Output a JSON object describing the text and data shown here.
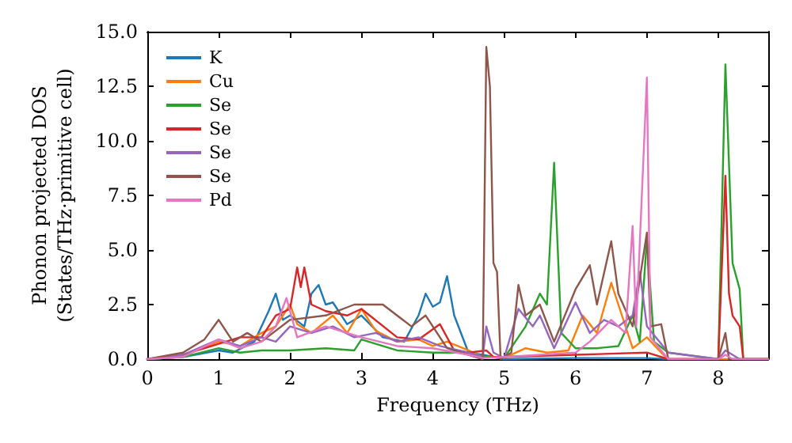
{
  "chart_data": {
    "type": "line",
    "xlabel": "Frequency (THz)",
    "ylabel": "Phonon projected DOS\n(States/THz·primitive cell)",
    "xlim": [
      0,
      8.7
    ],
    "ylim": [
      0,
      15
    ],
    "xticks": [
      0,
      1,
      2,
      3,
      4,
      5,
      6,
      7,
      8
    ],
    "yticks": [
      {
        "value": 0,
        "label": "0.0"
      },
      {
        "value": 2.5,
        "label": "2.5"
      },
      {
        "value": 5,
        "label": "5.0"
      },
      {
        "value": 7.5,
        "label": "7.5"
      },
      {
        "value": 10,
        "label": "10.0"
      },
      {
        "value": 12.5,
        "label": "12.5"
      },
      {
        "value": 15,
        "label": "15.0"
      }
    ],
    "grid": false,
    "legend": "top left",
    "marker": "none",
    "line_style": "solid",
    "series": [
      {
        "name": "K",
        "color": "#1f77b4",
        "x": [
          0,
          0.5,
          1,
          1.2,
          1.5,
          1.7,
          1.8,
          1.9,
          2.0,
          2.2,
          2.3,
          2.4,
          2.5,
          2.6,
          2.8,
          3.0,
          3.3,
          3.6,
          3.8,
          3.9,
          4.0,
          4.1,
          4.2,
          4.3,
          4.5,
          4.7,
          5.0,
          6,
          7,
          7.3
        ],
        "values": [
          0,
          0.1,
          0.4,
          0.3,
          0.8,
          2.2,
          3.0,
          1.8,
          2.0,
          1.5,
          3.0,
          3.4,
          2.5,
          2.6,
          1.6,
          2.0,
          1.0,
          0.8,
          2.0,
          3.0,
          2.4,
          2.6,
          3.8,
          2.0,
          0.3,
          0.2,
          0,
          0.05,
          0.05,
          0
        ]
      },
      {
        "name": "Cu",
        "color": "#ff7f0e",
        "x": [
          0,
          0.5,
          1,
          1.3,
          1.6,
          1.8,
          2.0,
          2.1,
          2.3,
          2.6,
          2.8,
          3.0,
          3.2,
          3.5,
          3.8,
          4.0,
          4.2,
          4.5,
          4.7,
          5.0,
          5.3,
          5.6,
          5.9,
          6.1,
          6.3,
          6.5,
          6.6,
          6.8,
          7.0,
          7.2,
          7.3,
          8,
          8.7
        ],
        "values": [
          0,
          0.2,
          0.8,
          0.6,
          1.2,
          1.5,
          2.5,
          1.6,
          1.2,
          2.0,
          1.2,
          2.3,
          1.3,
          0.8,
          0.9,
          0.6,
          0.8,
          0.4,
          0.1,
          0.05,
          0.5,
          0.3,
          0.4,
          2.0,
          1.2,
          3.5,
          2.5,
          0.5,
          1.0,
          0.3,
          0,
          0,
          0
        ]
      },
      {
        "name": "Se",
        "color": "#2ca02c",
        "x": [
          0,
          0.5,
          1,
          1.3,
          1.6,
          2.0,
          2.5,
          2.9,
          3.0,
          3.5,
          4.0,
          4.5,
          4.7,
          5.0,
          5.3,
          5.5,
          5.6,
          5.7,
          5.8,
          6.0,
          6.3,
          6.6,
          6.8,
          6.9,
          7.0,
          7.1,
          7.3,
          8.0,
          8.1,
          8.2,
          8.3,
          8.35,
          8.7
        ],
        "values": [
          0,
          0.1,
          0.5,
          0.3,
          0.4,
          0.4,
          0.5,
          0.4,
          0.9,
          0.4,
          0.3,
          0.3,
          0.1,
          0.05,
          1.5,
          3.0,
          2.5,
          9.0,
          1.2,
          0.5,
          0.5,
          0.6,
          2.0,
          0.8,
          5.5,
          0.8,
          0.3,
          0,
          13.5,
          4.4,
          3.2,
          0,
          0
        ]
      },
      {
        "name": "Se",
        "color": "#d62728",
        "x": [
          0,
          0.5,
          1,
          1.3,
          1.6,
          1.8,
          2.0,
          2.1,
          2.15,
          2.2,
          2.3,
          2.5,
          2.8,
          3.0,
          3.5,
          3.8,
          4.1,
          4.3,
          4.5,
          4.75,
          4.85,
          5.0,
          6.0,
          7.0,
          7.3,
          8.0,
          8.1,
          8.15,
          8.2,
          8.3,
          8.35,
          8.7
        ],
        "values": [
          0,
          0.2,
          0.7,
          1.0,
          1.0,
          2.0,
          2.3,
          4.2,
          3.3,
          4.2,
          2.5,
          2.2,
          2.0,
          2.3,
          1.0,
          0.9,
          1.6,
          0.4,
          0.3,
          0.4,
          0.1,
          0.1,
          0.2,
          0.3,
          0,
          0,
          8.4,
          3.0,
          2.0,
          1.5,
          0,
          0
        ]
      },
      {
        "name": "Se",
        "color": "#9467bd",
        "x": [
          0,
          0.5,
          1,
          1.3,
          1.6,
          1.8,
          2.0,
          2.3,
          2.6,
          2.9,
          3.2,
          3.5,
          3.8,
          4.1,
          4.5,
          4.7,
          4.75,
          4.85,
          5.0,
          5.2,
          5.4,
          5.5,
          5.7,
          6.0,
          6.2,
          6.4,
          6.6,
          6.8,
          6.9,
          7.0,
          7.3,
          8.0,
          8.1,
          8.3,
          8.7
        ],
        "values": [
          0,
          0.2,
          0.9,
          0.6,
          1.0,
          0.8,
          1.5,
          1.2,
          1.5,
          1.0,
          1.2,
          0.8,
          1.0,
          0.6,
          0.3,
          0.1,
          1.5,
          0.3,
          0.05,
          2.3,
          1.5,
          2.0,
          0.5,
          2.6,
          1.2,
          1.8,
          1.5,
          2.0,
          4.0,
          1.5,
          0.3,
          0,
          0.4,
          0,
          0
        ]
      },
      {
        "name": "Se",
        "color": "#8c564b",
        "x": [
          0,
          0.5,
          0.8,
          1.0,
          1.2,
          1.4,
          1.6,
          2.0,
          2.5,
          2.9,
          3.3,
          3.7,
          3.9,
          4.2,
          4.5,
          4.7,
          4.75,
          4.8,
          4.85,
          4.9,
          4.95,
          5.1,
          5.2,
          5.3,
          5.5,
          5.7,
          6.0,
          6.2,
          6.3,
          6.5,
          6.6,
          6.8,
          7.0,
          7.05,
          7.2,
          7.3,
          8.0,
          8.1,
          8.15,
          8.7
        ],
        "values": [
          0,
          0.3,
          0.9,
          1.8,
          0.8,
          1.2,
          0.8,
          1.8,
          2.0,
          2.5,
          2.5,
          1.5,
          2.0,
          0.5,
          0.2,
          0,
          14.3,
          12.5,
          4.4,
          4.0,
          0,
          0.3,
          3.4,
          2.0,
          2.5,
          0.8,
          3.2,
          4.3,
          2.5,
          5.4,
          3.0,
          1.5,
          5.8,
          1.5,
          1.6,
          0,
          0,
          1.2,
          0,
          0
        ]
      },
      {
        "name": "Pd",
        "color": "#e377c2",
        "x": [
          0,
          0.5,
          1,
          1.3,
          1.6,
          1.8,
          1.95,
          2.1,
          2.5,
          3.0,
          3.5,
          4.0,
          4.5,
          4.7,
          5.0,
          5.5,
          6.0,
          6.2,
          6.5,
          6.7,
          6.8,
          6.85,
          7.0,
          7.05,
          7.3,
          8.0,
          8.1,
          8.2,
          8.7
        ],
        "values": [
          0,
          0.1,
          0.9,
          0.5,
          0.8,
          1.5,
          2.8,
          1.0,
          1.5,
          1.0,
          0.6,
          0.5,
          0.2,
          0.05,
          0.1,
          0.2,
          0.3,
          0.8,
          1.8,
          1.2,
          6.1,
          1.5,
          12.9,
          1.0,
          0,
          0,
          0.2,
          0,
          0
        ]
      }
    ]
  }
}
